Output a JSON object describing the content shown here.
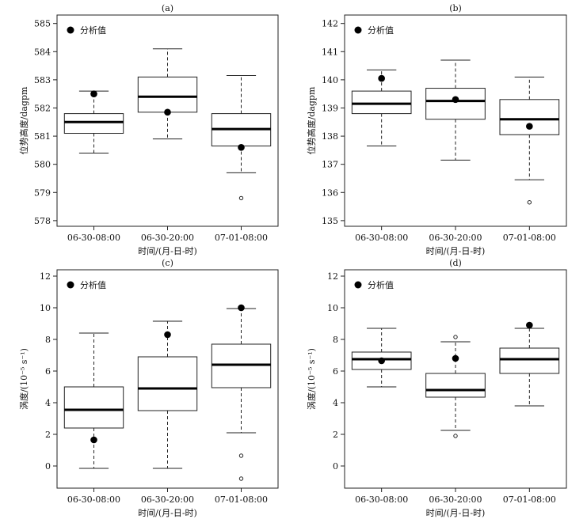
{
  "chart_data": [
    {
      "type": "box",
      "title": "(a)",
      "xlabel": "时间/(月-日-时)",
      "ylabel": "位势高度/dagpm",
      "ylim": [
        577.8,
        585.3
      ],
      "yticks": [
        "585",
        "584",
        "583",
        "582",
        "581",
        "580",
        "579",
        "578"
      ],
      "legend": {
        "label": "分析值",
        "placement": "top-left"
      },
      "categories": [
        "06-30-08:00",
        "06-30-20:00",
        "07-01-08:00"
      ],
      "boxes": [
        {
          "whisker_low": 580.4,
          "q1": 581.1,
          "median": 581.5,
          "q3": 581.8,
          "whisker_high": 582.6,
          "outliers": [],
          "analysis": 582.5
        },
        {
          "whisker_low": 580.9,
          "q1": 581.85,
          "median": 582.4,
          "q3": 583.1,
          "whisker_high": 584.1,
          "outliers": [],
          "analysis": 581.85
        },
        {
          "whisker_low": 579.7,
          "q1": 580.65,
          "median": 581.25,
          "q3": 581.8,
          "whisker_high": 583.15,
          "outliers": [
            578.8
          ],
          "analysis": 580.6
        }
      ]
    },
    {
      "type": "box",
      "title": "(b)",
      "xlabel": "时间/(月-日-时)",
      "ylabel": "位势高度/dagpm",
      "ylim": [
        134.8,
        142.3
      ],
      "yticks": [
        "142",
        "141",
        "140",
        "139",
        "138",
        "137",
        "136",
        "135"
      ],
      "legend": {
        "label": "分析值",
        "placement": "top-left"
      },
      "categories": [
        "06-30-08:00",
        "06-30-20:00",
        "07-01-08:00"
      ],
      "boxes": [
        {
          "whisker_low": 137.65,
          "q1": 138.8,
          "median": 139.15,
          "q3": 139.6,
          "whisker_high": 140.35,
          "outliers": [],
          "analysis": 140.05
        },
        {
          "whisker_low": 137.15,
          "q1": 138.6,
          "median": 139.25,
          "q3": 139.7,
          "whisker_high": 140.7,
          "outliers": [],
          "analysis": 139.3
        },
        {
          "whisker_low": 136.45,
          "q1": 138.05,
          "median": 138.6,
          "q3": 139.3,
          "whisker_high": 140.1,
          "outliers": [
            135.65
          ],
          "analysis": 138.35
        }
      ]
    },
    {
      "type": "box",
      "title": "(c)",
      "xlabel": "时间/(月-日-时)",
      "ylabel": "涡度/(10⁻⁵ s⁻¹)",
      "ylim": [
        -1.4,
        12.4
      ],
      "yticks": [
        "12",
        "10",
        "8",
        "6",
        "4",
        "2",
        "0"
      ],
      "legend": {
        "label": "分析值",
        "placement": "top-left"
      },
      "categories": [
        "06-30-08:00",
        "06-30-20:00",
        "07-01-08:00"
      ],
      "boxes": [
        {
          "whisker_low": -0.15,
          "q1": 2.4,
          "median": 3.55,
          "q3": 5.0,
          "whisker_high": 8.4,
          "outliers": [],
          "analysis": 1.65
        },
        {
          "whisker_low": -0.15,
          "q1": 3.5,
          "median": 4.9,
          "q3": 6.9,
          "whisker_high": 9.15,
          "outliers": [],
          "analysis": 8.3
        },
        {
          "whisker_low": 2.1,
          "q1": 4.95,
          "median": 6.4,
          "q3": 7.7,
          "whisker_high": 9.95,
          "outliers": [
            0.65,
            -0.8
          ],
          "analysis": 10.0
        }
      ]
    },
    {
      "type": "box",
      "title": "(d)",
      "xlabel": "时间/(月-日-时)",
      "ylabel": "涡度/(10⁻⁵ s⁻¹)",
      "ylim": [
        -1.4,
        12.4
      ],
      "yticks": [
        "12",
        "10",
        "8",
        "6",
        "4",
        "2",
        "0"
      ],
      "legend": {
        "label": "分析值",
        "placement": "top-left"
      },
      "categories": [
        "06-30-08:00",
        "06-30-20:00",
        "07-01-08:00"
      ],
      "boxes": [
        {
          "whisker_low": 5.0,
          "q1": 6.1,
          "median": 6.75,
          "q3": 7.2,
          "whisker_high": 8.7,
          "outliers": [],
          "analysis": 6.65
        },
        {
          "whisker_low": 2.25,
          "q1": 4.35,
          "median": 4.8,
          "q3": 5.85,
          "whisker_high": 7.85,
          "outliers": [
            8.15,
            1.9
          ],
          "analysis": 6.8
        },
        {
          "whisker_low": 3.8,
          "q1": 5.85,
          "median": 6.75,
          "q3": 7.45,
          "whisker_high": 8.7,
          "outliers": [],
          "analysis": 8.9
        }
      ]
    }
  ]
}
